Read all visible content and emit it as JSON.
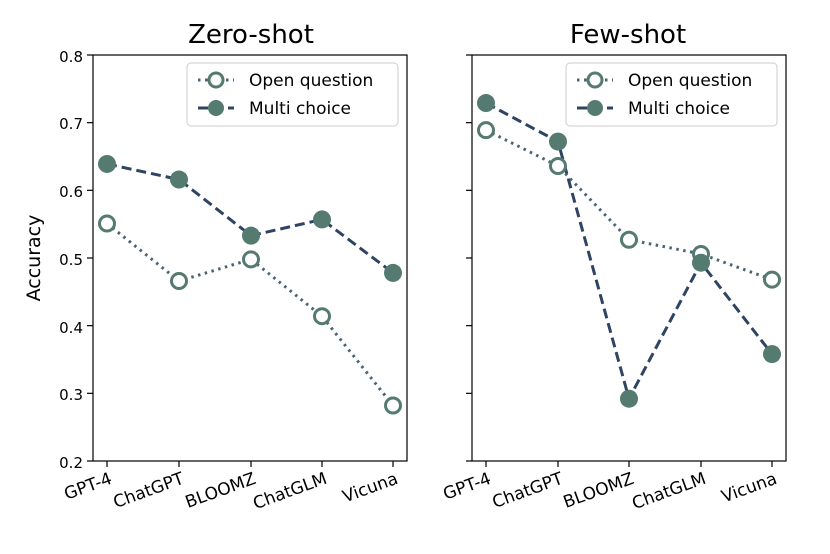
{
  "chart_data": [
    {
      "type": "line",
      "title": "Zero-shot",
      "categories": [
        "GPT-4",
        "ChatGPT",
        "BLOOMZ",
        "ChatGLM",
        "Vicuna"
      ],
      "ylabel": "Accuracy",
      "ylim": [
        0.2,
        0.8
      ],
      "yticks": [
        "0.2",
        "0.3",
        "0.4",
        "0.5",
        "0.6",
        "0.7",
        "0.8"
      ],
      "legend_position": "top-right",
      "series": [
        {
          "name": "Open question",
          "style": "dotted",
          "marker": "hollow-circle",
          "values": [
            0.551,
            0.466,
            0.498,
            0.414,
            0.282
          ]
        },
        {
          "name": "Multi choice",
          "style": "dashed",
          "marker": "filled-circle",
          "values": [
            0.639,
            0.616,
            0.533,
            0.557,
            0.478
          ]
        }
      ]
    },
    {
      "type": "line",
      "title": "Few-shot",
      "categories": [
        "GPT-4",
        "ChatGPT",
        "BLOOMZ",
        "ChatGLM",
        "Vicuna"
      ],
      "ylabel": "",
      "ylim": [
        0.2,
        0.8
      ],
      "legend_position": "top-right",
      "series": [
        {
          "name": "Open question",
          "style": "dotted",
          "marker": "hollow-circle",
          "values": [
            0.689,
            0.636,
            0.527,
            0.506,
            0.468
          ]
        },
        {
          "name": "Multi choice",
          "style": "dashed",
          "marker": "filled-circle",
          "values": [
            0.729,
            0.672,
            0.292,
            0.493,
            0.358
          ]
        }
      ]
    }
  ],
  "colors": {
    "open_question_line": "#4a6476",
    "multi_choice_line": "#2e4462",
    "marker": "#557a70"
  }
}
